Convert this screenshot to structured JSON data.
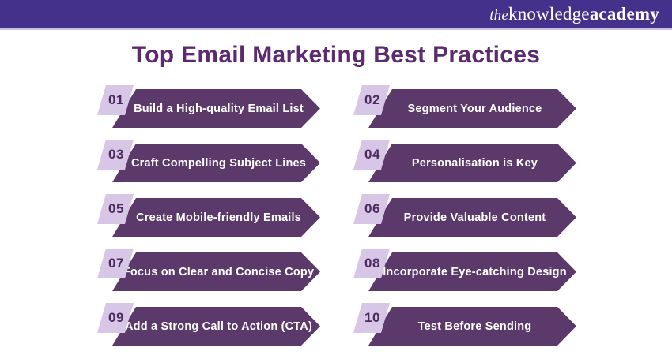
{
  "brand": {
    "the": "the",
    "knowledge": "knowledge",
    "academy": "academy"
  },
  "title": "Top Email Marketing Best Practices",
  "items": [
    {
      "number": "01",
      "label": "Build a High-quality Email List"
    },
    {
      "number": "02",
      "label": "Segment Your Audience"
    },
    {
      "number": "03",
      "label": "Craft Compelling Subject Lines"
    },
    {
      "number": "04",
      "label": "Personalisation is Key"
    },
    {
      "number": "05",
      "label": "Create Mobile-friendly Emails"
    },
    {
      "number": "06",
      "label": "Provide Valuable Content"
    },
    {
      "number": "07",
      "label": "Focus on Clear and Concise Copy"
    },
    {
      "number": "08",
      "label": "Incorporate Eye-catching Design"
    },
    {
      "number": "09",
      "label": "Add a Strong Call to Action (CTA)"
    },
    {
      "number": "10",
      "label": "Test Before Sending"
    }
  ],
  "colors": {
    "header_bg": "#44318B",
    "header_line": "#C9C2E6",
    "title_color": "#5C2A6E",
    "banner_bg": "#5B3A6B",
    "badge_bg": "#D7C6E6",
    "badge_text": "#4C2960",
    "banner_text": "#FFFFFF"
  }
}
